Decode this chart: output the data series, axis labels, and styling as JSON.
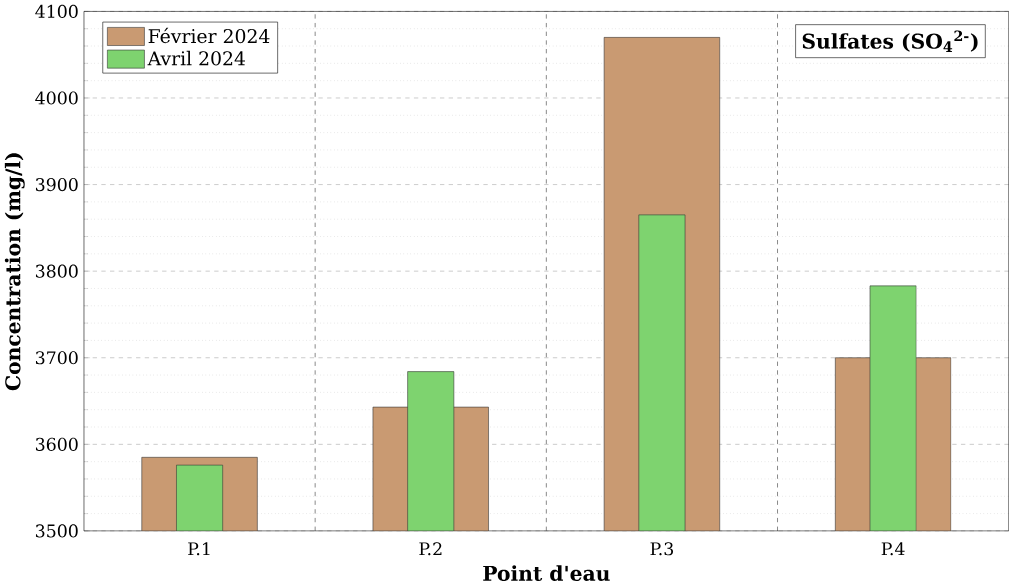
{
  "chart_data": {
    "type": "bar",
    "xlabel": "Point d'eau",
    "ylabel": "Concentration (mg/l)",
    "annotations": [
      "Sulfates (SO$_{4}$$^{2-}$)"
    ],
    "categories": [
      "P.1",
      "P.2",
      "P.3",
      "P.4"
    ],
    "series": [
      {
        "name": "Février 2024",
        "color": "#c99a72",
        "values": [
          3585,
          3643,
          4070,
          3700
        ]
      },
      {
        "name": "Avril 2024",
        "color": "#7ed36f",
        "values": [
          3576,
          3684,
          3865,
          3783
        ]
      }
    ],
    "ylim": [
      3500,
      4100
    ],
    "yticks": [
      3500,
      3600,
      3700,
      3800,
      3900,
      4000,
      4100
    ],
    "grid": true,
    "legend": "top left"
  }
}
